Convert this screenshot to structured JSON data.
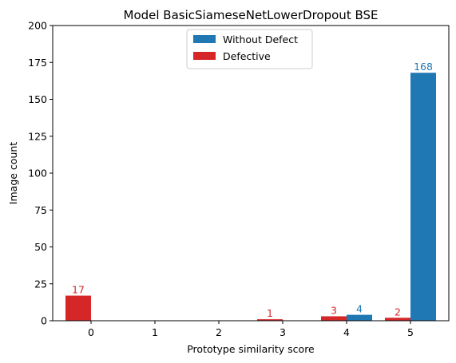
{
  "chart_data": {
    "type": "bar",
    "title": "Model BasicSiameseNetLowerDropout BSE",
    "xlabel": "Prototype similarity score",
    "ylabel": "Image count",
    "categories": [
      "0",
      "1",
      "2",
      "3",
      "4",
      "5"
    ],
    "ylim": [
      0,
      200
    ],
    "yticks": [
      0,
      25,
      50,
      75,
      100,
      125,
      150,
      175,
      200
    ],
    "grid": false,
    "legend_position": "top-center",
    "series": [
      {
        "name": "Without Defect",
        "color": "#1f77b4",
        "values": [
          0,
          0,
          0,
          0,
          4,
          168
        ],
        "data_labels": [
          "",
          "",
          "",
          "",
          "4",
          "168"
        ]
      },
      {
        "name": "Defective",
        "color": "#d62728",
        "values": [
          17,
          0,
          0,
          1,
          3,
          2
        ],
        "data_labels": [
          "17",
          "",
          "",
          "1",
          "3",
          "2"
        ]
      }
    ]
  }
}
